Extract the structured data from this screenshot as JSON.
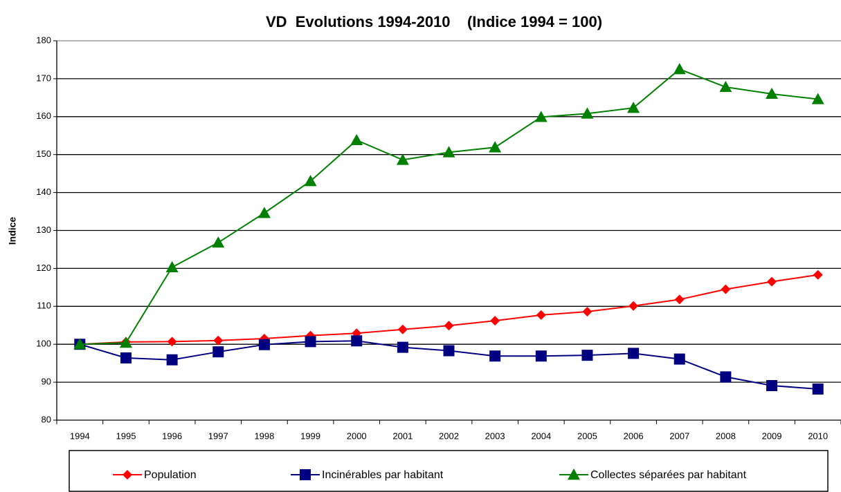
{
  "chart_data": {
    "type": "line",
    "title": "VD  Evolutions 1994-2010    (Indice 1994 = 100)",
    "y_label": "Indice",
    "categories": [
      "1994",
      "1995",
      "1996",
      "1997",
      "1998",
      "1999",
      "2000",
      "2001",
      "2002",
      "2003",
      "2004",
      "2005",
      "2006",
      "2007",
      "2008",
      "2009",
      "2010"
    ],
    "series": [
      {
        "name": "Population",
        "color": "#ff0000",
        "marker": "diamond",
        "values": [
          100,
          100.6,
          100.7,
          101,
          101.5,
          102.3,
          102.9,
          103.9,
          104.9,
          106.2,
          107.7,
          108.6,
          110.1,
          111.8,
          114.5,
          116.5,
          118.3
        ]
      },
      {
        "name": "Incinérables par habitant",
        "color": "#000080",
        "marker": "square",
        "values": [
          100,
          96.4,
          95.9,
          98,
          99.9,
          100.7,
          100.9,
          99.2,
          98.3,
          96.9,
          96.9,
          97.1,
          97.6,
          96.1,
          91.4,
          89.1,
          88.2
        ]
      },
      {
        "name": "Collectes séparées par habitant",
        "color": "#008000",
        "marker": "triangle",
        "values": [
          100,
          100.4,
          120.3,
          126.8,
          134.6,
          143,
          153.8,
          148.6,
          150.6,
          151.9,
          159.9,
          160.8,
          162.3,
          172.5,
          167.8,
          166,
          164.6
        ]
      }
    ],
    "ylim": [
      80,
      180
    ],
    "yticks": [
      80,
      90,
      100,
      110,
      120,
      130,
      140,
      150,
      160,
      170,
      180
    ],
    "grid": true,
    "legend": "bottom"
  }
}
